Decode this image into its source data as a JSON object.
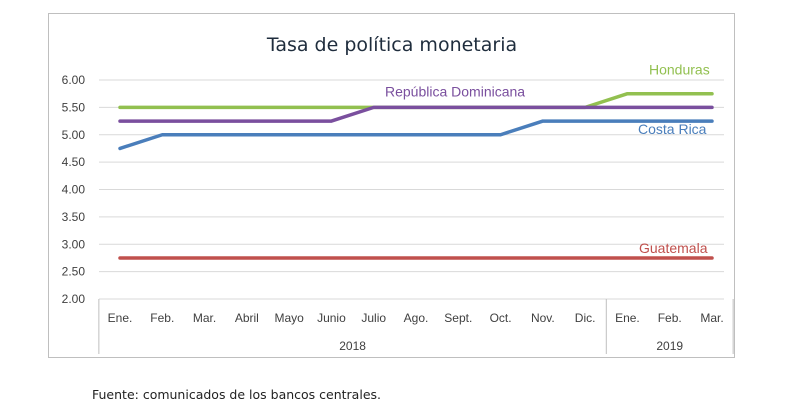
{
  "chart_data": {
    "type": "line",
    "title": "Tasa de política monetaria",
    "categories": [
      "Ene.",
      "Feb.",
      "Mar.",
      "Abril",
      "Mayo",
      "Junio",
      "Julio",
      "Ago.",
      "Sept.",
      "Oct.",
      "Nov.",
      "Dic.",
      "Ene.",
      "Feb.",
      "Mar."
    ],
    "year_groups": [
      {
        "label": "2018",
        "span": 12
      },
      {
        "label": "2019",
        "span": 3
      }
    ],
    "ylim": [
      2.0,
      6.0
    ],
    "yticks": [
      "2.00",
      "2.50",
      "3.00",
      "3.50",
      "4.00",
      "4.50",
      "5.00",
      "5.50",
      "6.00"
    ],
    "grid": true,
    "legend": "inline labels",
    "series": [
      {
        "name": "Honduras",
        "color": "#92c050",
        "values": [
          5.5,
          5.5,
          5.5,
          5.5,
          5.5,
          5.5,
          5.5,
          5.5,
          5.5,
          5.5,
          5.5,
          5.5,
          5.75,
          5.75,
          5.75
        ]
      },
      {
        "name": "República Dominicana",
        "color": "#7a4f9e",
        "values": [
          5.25,
          5.25,
          5.25,
          5.25,
          5.25,
          5.25,
          5.5,
          5.5,
          5.5,
          5.5,
          5.5,
          5.5,
          5.5,
          5.5,
          5.5
        ]
      },
      {
        "name": "Costa Rica",
        "color": "#4a7ebb",
        "values": [
          4.75,
          5.0,
          5.0,
          5.0,
          5.0,
          5.0,
          5.0,
          5.0,
          5.0,
          5.0,
          5.25,
          5.25,
          5.25,
          5.25,
          5.25
        ]
      },
      {
        "name": "Guatemala",
        "color": "#c0504d",
        "values": [
          2.75,
          2.75,
          2.75,
          2.75,
          2.75,
          2.75,
          2.75,
          2.75,
          2.75,
          2.75,
          2.75,
          2.75,
          2.75,
          2.75,
          2.75
        ]
      }
    ]
  },
  "source_note": "Fuente: comunicados de los bancos centrales."
}
